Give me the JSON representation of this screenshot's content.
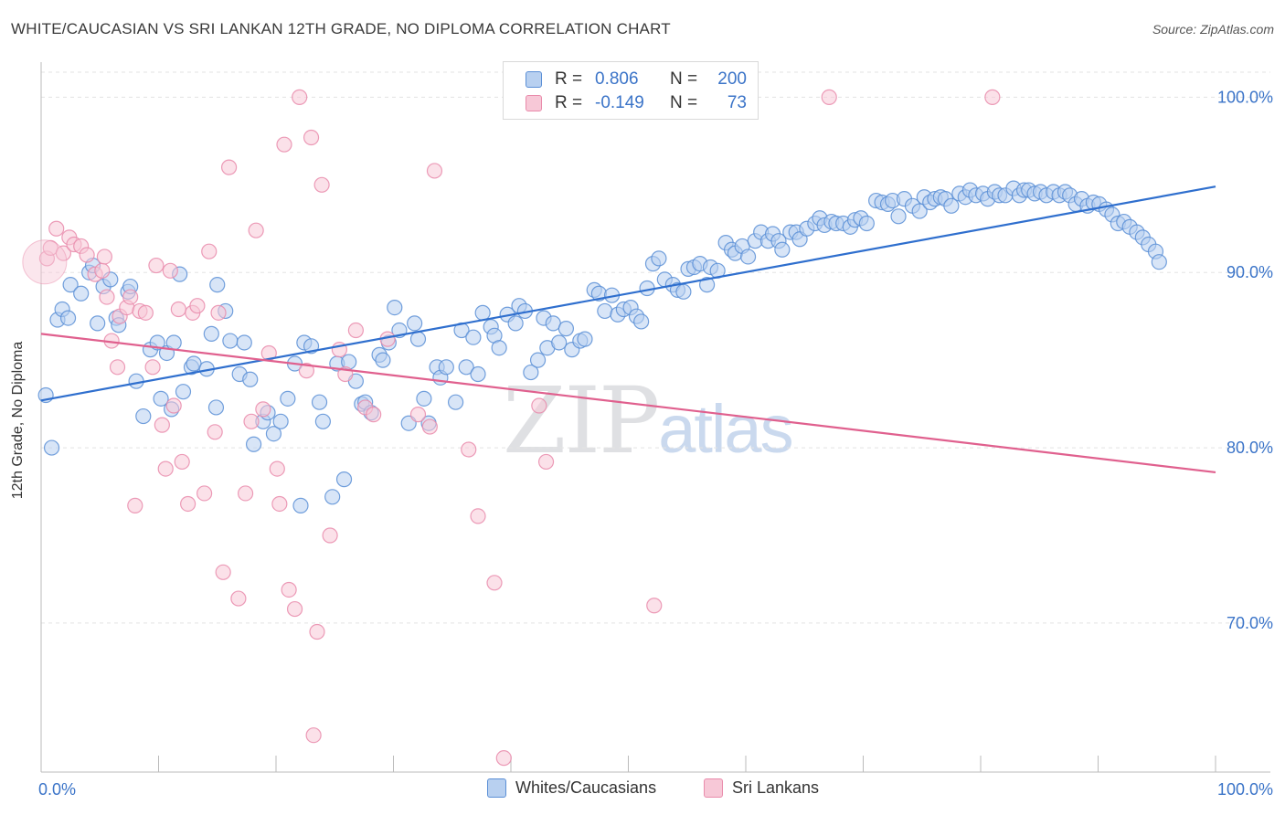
{
  "title": "WHITE/CAUCASIAN VS SRI LANKAN 12TH GRADE, NO DIPLOMA CORRELATION CHART",
  "source": "Source: ZipAtlas.com",
  "watermark": {
    "zip": "ZIP",
    "atlas": "atlas"
  },
  "colors": {
    "blue": "#5b8fd6",
    "blue_fill": "#b8d0f0",
    "blue_line": "#2f6fce",
    "pink": "#e98bab",
    "pink_fill": "#f7c8d7",
    "pink_line": "#e0608e",
    "axis_text": "#3b74c8",
    "grid": "#e3e3e3"
  },
  "legend": {
    "rows": [
      {
        "r_label": "R =",
        "r_value": "0.806",
        "n_label": "N =",
        "n_value": "200"
      },
      {
        "r_label": "R =",
        "r_value": "-0.149",
        "n_label": "N =",
        "n_value": "73"
      }
    ]
  },
  "bottom_legend": [
    "Whites/Caucasians",
    "Sri Lankans"
  ],
  "chart_data": {
    "type": "scatter",
    "xlabel": "",
    "ylabel": "12th Grade, No Diploma",
    "xlim": [
      0,
      100
    ],
    "ylim": [
      61.5,
      102
    ],
    "x_tick_labels": [
      "0.0%",
      "100.0%"
    ],
    "y_ticks": [
      70,
      80,
      90,
      100
    ],
    "y_tick_labels": [
      "70.0%",
      "80.0%",
      "90.0%",
      "100.0%"
    ],
    "grid": true,
    "series": [
      {
        "name": "Whites/Caucasians",
        "color": "#5b8fd6",
        "trend": {
          "x": [
            0,
            100
          ],
          "y": [
            82.7,
            94.9
          ]
        },
        "points": [
          [
            0.4,
            83.0
          ],
          [
            0.9,
            80.0
          ],
          [
            1.4,
            87.3
          ],
          [
            1.8,
            87.9
          ],
          [
            2.3,
            87.4
          ],
          [
            2.5,
            89.3
          ],
          [
            3.4,
            88.8
          ],
          [
            4.1,
            90.0
          ],
          [
            4.4,
            90.4
          ],
          [
            4.8,
            87.1
          ],
          [
            5.3,
            89.2
          ],
          [
            5.9,
            89.6
          ],
          [
            6.4,
            87.4
          ],
          [
            6.6,
            87.0
          ],
          [
            7.4,
            88.9
          ],
          [
            7.6,
            89.2
          ],
          [
            8.1,
            83.8
          ],
          [
            8.7,
            81.8
          ],
          [
            9.3,
            85.6
          ],
          [
            9.9,
            86.0
          ],
          [
            10.2,
            82.8
          ],
          [
            10.7,
            85.4
          ],
          [
            11.1,
            82.2
          ],
          [
            11.8,
            89.9
          ],
          [
            12.1,
            83.2
          ],
          [
            12.8,
            84.6
          ],
          [
            13.0,
            84.8
          ],
          [
            14.1,
            84.5
          ],
          [
            14.5,
            86.5
          ],
          [
            14.9,
            82.3
          ],
          [
            15.7,
            87.8
          ],
          [
            16.1,
            86.1
          ],
          [
            16.9,
            84.2
          ],
          [
            17.3,
            86.0
          ],
          [
            17.8,
            83.9
          ],
          [
            18.1,
            80.2
          ],
          [
            18.9,
            81.5
          ],
          [
            19.3,
            82.0
          ],
          [
            19.8,
            80.8
          ],
          [
            20.4,
            81.5
          ],
          [
            21.0,
            82.8
          ],
          [
            21.6,
            84.8
          ],
          [
            22.1,
            76.7
          ],
          [
            22.4,
            86.0
          ],
          [
            23.0,
            85.8
          ],
          [
            23.7,
            82.6
          ],
          [
            24.0,
            81.5
          ],
          [
            24.8,
            77.2
          ],
          [
            25.2,
            84.8
          ],
          [
            25.8,
            78.2
          ],
          [
            26.2,
            84.9
          ],
          [
            26.8,
            83.8
          ],
          [
            27.3,
            82.5
          ],
          [
            27.6,
            82.6
          ],
          [
            28.1,
            82.0
          ],
          [
            28.8,
            85.3
          ],
          [
            29.1,
            85.0
          ],
          [
            29.6,
            86.0
          ],
          [
            30.1,
            88.0
          ],
          [
            30.5,
            86.7
          ],
          [
            31.3,
            81.4
          ],
          [
            31.8,
            87.1
          ],
          [
            32.1,
            86.2
          ],
          [
            32.6,
            82.8
          ],
          [
            33.0,
            81.4
          ],
          [
            33.7,
            84.6
          ],
          [
            34.0,
            84.0
          ],
          [
            34.5,
            84.6
          ],
          [
            35.3,
            82.6
          ],
          [
            35.8,
            86.7
          ],
          [
            36.2,
            84.6
          ],
          [
            36.8,
            86.3
          ],
          [
            37.2,
            84.2
          ],
          [
            37.6,
            87.7
          ],
          [
            38.3,
            86.9
          ],
          [
            38.6,
            86.4
          ],
          [
            39.0,
            85.7
          ],
          [
            39.7,
            87.6
          ],
          [
            40.4,
            87.1
          ],
          [
            40.7,
            88.1
          ],
          [
            41.2,
            87.8
          ],
          [
            41.7,
            84.3
          ],
          [
            42.3,
            85.0
          ],
          [
            42.8,
            87.4
          ],
          [
            43.1,
            85.7
          ],
          [
            43.6,
            87.1
          ],
          [
            44.1,
            86.0
          ],
          [
            44.7,
            86.8
          ],
          [
            45.2,
            85.6
          ],
          [
            45.9,
            86.1
          ],
          [
            46.3,
            86.2
          ],
          [
            47.1,
            89.0
          ],
          [
            47.5,
            88.8
          ],
          [
            48.0,
            87.8
          ],
          [
            48.6,
            88.7
          ],
          [
            49.1,
            87.6
          ],
          [
            49.6,
            87.9
          ],
          [
            50.2,
            88.0
          ],
          [
            50.7,
            87.5
          ],
          [
            51.1,
            87.2
          ],
          [
            51.6,
            89.1
          ],
          [
            52.1,
            90.5
          ],
          [
            52.6,
            90.8
          ],
          [
            53.1,
            89.6
          ],
          [
            53.8,
            89.3
          ],
          [
            54.2,
            89.0
          ],
          [
            54.7,
            88.9
          ],
          [
            55.1,
            90.2
          ],
          [
            55.6,
            90.3
          ],
          [
            56.1,
            90.5
          ],
          [
            56.7,
            89.3
          ],
          [
            57.0,
            90.3
          ],
          [
            57.6,
            90.1
          ],
          [
            58.3,
            91.7
          ],
          [
            58.8,
            91.3
          ],
          [
            59.1,
            91.1
          ],
          [
            59.7,
            91.5
          ],
          [
            60.2,
            90.9
          ],
          [
            60.8,
            91.8
          ],
          [
            61.3,
            92.3
          ],
          [
            61.9,
            91.8
          ],
          [
            62.3,
            92.2
          ],
          [
            62.8,
            91.8
          ],
          [
            63.1,
            91.3
          ],
          [
            63.8,
            92.3
          ],
          [
            64.3,
            92.3
          ],
          [
            64.6,
            91.9
          ],
          [
            65.2,
            92.5
          ],
          [
            65.9,
            92.8
          ],
          [
            66.3,
            93.1
          ],
          [
            66.7,
            92.7
          ],
          [
            67.3,
            92.9
          ],
          [
            67.7,
            92.8
          ],
          [
            68.3,
            92.8
          ],
          [
            68.9,
            92.6
          ],
          [
            69.3,
            93.0
          ],
          [
            69.8,
            93.1
          ],
          [
            70.3,
            92.8
          ],
          [
            71.1,
            94.1
          ],
          [
            71.6,
            94.0
          ],
          [
            72.1,
            93.9
          ],
          [
            72.5,
            94.1
          ],
          [
            73.0,
            93.2
          ],
          [
            73.5,
            94.2
          ],
          [
            74.2,
            93.8
          ],
          [
            74.8,
            93.5
          ],
          [
            75.2,
            94.3
          ],
          [
            75.7,
            94.0
          ],
          [
            76.1,
            94.2
          ],
          [
            76.6,
            94.3
          ],
          [
            77.0,
            94.2
          ],
          [
            77.5,
            93.8
          ],
          [
            78.2,
            94.5
          ],
          [
            78.7,
            94.3
          ],
          [
            79.1,
            94.7
          ],
          [
            79.6,
            94.4
          ],
          [
            80.2,
            94.5
          ],
          [
            80.6,
            94.2
          ],
          [
            81.2,
            94.6
          ],
          [
            81.6,
            94.4
          ],
          [
            82.1,
            94.4
          ],
          [
            82.8,
            94.8
          ],
          [
            83.3,
            94.4
          ],
          [
            83.7,
            94.7
          ],
          [
            84.1,
            94.7
          ],
          [
            84.6,
            94.5
          ],
          [
            85.1,
            94.6
          ],
          [
            85.6,
            94.4
          ],
          [
            86.2,
            94.6
          ],
          [
            86.7,
            94.4
          ],
          [
            87.2,
            94.6
          ],
          [
            87.6,
            94.4
          ],
          [
            88.1,
            93.9
          ],
          [
            88.6,
            94.2
          ],
          [
            89.1,
            93.8
          ],
          [
            89.6,
            94.0
          ],
          [
            90.1,
            93.9
          ],
          [
            90.7,
            93.6
          ],
          [
            91.2,
            93.3
          ],
          [
            91.7,
            92.8
          ],
          [
            92.2,
            92.9
          ],
          [
            92.7,
            92.6
          ],
          [
            93.3,
            92.3
          ],
          [
            93.8,
            92.0
          ],
          [
            94.3,
            91.6
          ],
          [
            94.9,
            91.2
          ],
          [
            95.2,
            90.6
          ],
          [
            11.3,
            86.0
          ],
          [
            15.0,
            89.3
          ]
        ]
      },
      {
        "name": "Sri Lankans",
        "color": "#e98bab",
        "trend": {
          "x": [
            0,
            100
          ],
          "y": [
            86.5,
            78.6
          ]
        },
        "points": [
          [
            0.5,
            90.8
          ],
          [
            0.8,
            91.4
          ],
          [
            1.3,
            92.5
          ],
          [
            1.9,
            91.1
          ],
          [
            2.4,
            92.0
          ],
          [
            2.8,
            91.6
          ],
          [
            3.4,
            91.5
          ],
          [
            3.9,
            91.0
          ],
          [
            4.6,
            89.9
          ],
          [
            5.2,
            90.1
          ],
          [
            5.4,
            90.9
          ],
          [
            5.6,
            88.6
          ],
          [
            6.0,
            86.1
          ],
          [
            6.5,
            84.6
          ],
          [
            6.7,
            87.5
          ],
          [
            7.3,
            88.0
          ],
          [
            7.6,
            88.6
          ],
          [
            8.0,
            76.7
          ],
          [
            8.4,
            87.8
          ],
          [
            8.9,
            87.7
          ],
          [
            9.5,
            84.6
          ],
          [
            9.8,
            90.4
          ],
          [
            10.3,
            81.3
          ],
          [
            10.6,
            78.8
          ],
          [
            11.0,
            90.1
          ],
          [
            11.3,
            82.4
          ],
          [
            11.7,
            87.9
          ],
          [
            12.0,
            79.2
          ],
          [
            12.5,
            76.8
          ],
          [
            12.9,
            87.7
          ],
          [
            13.3,
            88.1
          ],
          [
            13.9,
            77.4
          ],
          [
            14.3,
            91.2
          ],
          [
            14.8,
            80.9
          ],
          [
            15.1,
            87.7
          ],
          [
            15.5,
            72.9
          ],
          [
            16.0,
            96.0
          ],
          [
            16.8,
            71.4
          ],
          [
            17.4,
            77.4
          ],
          [
            17.9,
            81.5
          ],
          [
            18.3,
            92.4
          ],
          [
            18.9,
            82.2
          ],
          [
            19.4,
            85.4
          ],
          [
            20.1,
            78.8
          ],
          [
            20.7,
            97.3
          ],
          [
            21.1,
            71.9
          ],
          [
            21.6,
            70.8
          ],
          [
            22.0,
            100.0
          ],
          [
            22.6,
            84.4
          ],
          [
            23.0,
            97.7
          ],
          [
            23.5,
            69.5
          ],
          [
            23.9,
            95.0
          ],
          [
            24.6,
            75.0
          ],
          [
            25.4,
            85.6
          ],
          [
            25.9,
            84.2
          ],
          [
            26.8,
            86.7
          ],
          [
            27.6,
            82.3
          ],
          [
            28.3,
            81.9
          ],
          [
            32.1,
            81.9
          ],
          [
            33.1,
            81.2
          ],
          [
            33.5,
            95.8
          ],
          [
            36.4,
            79.9
          ],
          [
            37.2,
            76.1
          ],
          [
            38.6,
            72.3
          ],
          [
            39.4,
            62.3
          ],
          [
            42.4,
            82.4
          ],
          [
            43.0,
            79.2
          ],
          [
            52.2,
            71.0
          ],
          [
            67.1,
            100.0
          ],
          [
            81.0,
            100.0
          ],
          [
            23.2,
            63.6
          ],
          [
            29.5,
            86.2
          ],
          [
            20.3,
            76.8
          ]
        ]
      }
    ]
  }
}
